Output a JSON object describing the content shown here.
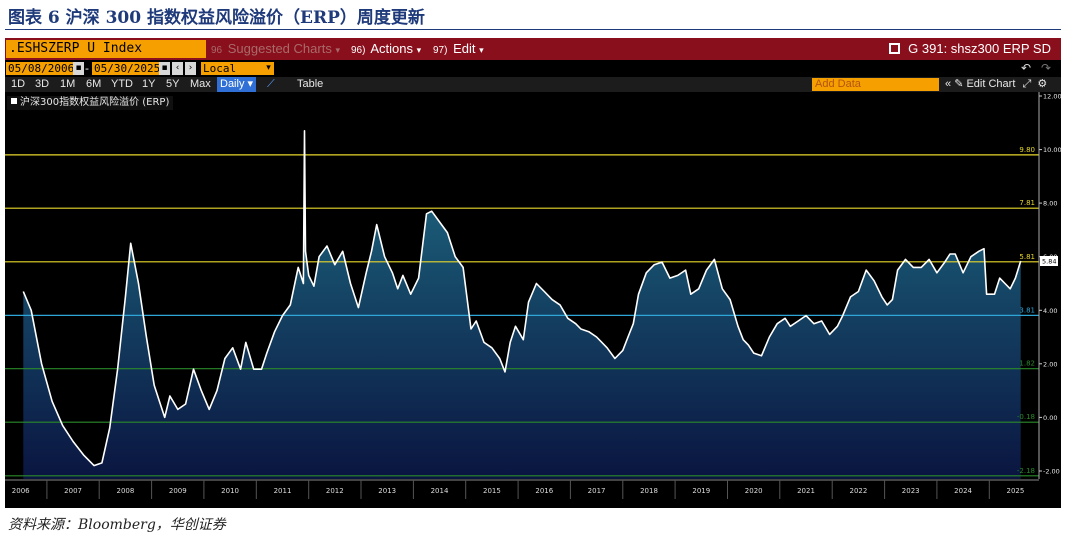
{
  "figure_title": "图表 6 沪深 300 指数权益风险溢价（ERP）周度更新",
  "source_note": "资料来源：Bloomberg，华创证券",
  "terminal": {
    "security": ".ESHSZERP U Index",
    "suggested_charts": "Suggested Charts",
    "suggested_num": "96",
    "actions_num": "96)",
    "actions_label": "Actions",
    "edit_num": "97)",
    "edit_label": "Edit",
    "chart_command": "G 391: shsz300 ERP SD",
    "start_date": "05/08/2006",
    "end_date": "05/30/2025",
    "currency": "Local CCY",
    "ranges": [
      "1D",
      "3D",
      "1M",
      "6M",
      "YTD",
      "1Y",
      "5Y",
      "Max"
    ],
    "frequency": "Daily",
    "table_label": "Table",
    "add_data_placeholder": "Add Data",
    "edit_chart_label": "Edit Chart",
    "legend_label": "沪深300指数权益风险溢价 (ERP)",
    "colors": {
      "bar_red": "#8a0f1c",
      "field_orange": "#f5a000",
      "series_line": "#ffffff",
      "area_top": "#1f6f86",
      "area_bottom": "#0a1540",
      "mean_line": "#2ea6d8",
      "sd1_line": "#e8d82a",
      "sd2_line": "#e8d82a",
      "sd3_line": "#e8d82a",
      "neg_sd_line": "#2a8a2a"
    }
  },
  "chart_data": {
    "type": "area",
    "title": "",
    "xlabel": "",
    "ylabel": "",
    "ylim": [
      -2.3,
      12.0
    ],
    "xlim": [
      2006.0,
      2025.75
    ],
    "y_ticks": [
      "12.00",
      "10.00",
      "8.00",
      "6.00",
      "4.00",
      "2.00",
      "0.00",
      "-2.00"
    ],
    "y_tick_values": [
      12,
      10,
      8,
      6,
      4,
      2,
      0,
      -2
    ],
    "x_ticks": [
      "2006",
      "2007",
      "2008",
      "2009",
      "2010",
      "2011",
      "2012",
      "2013",
      "2014",
      "2015",
      "2016",
      "2017",
      "2018",
      "2019",
      "2020",
      "2021",
      "2022",
      "2023",
      "2024",
      "2025"
    ],
    "x_tick_values": [
      2006.3,
      2007.3,
      2008.3,
      2009.3,
      2010.3,
      2011.3,
      2012.3,
      2013.3,
      2014.3,
      2015.3,
      2016.3,
      2017.3,
      2018.3,
      2019.3,
      2020.3,
      2021.3,
      2022.3,
      2023.3,
      2024.3,
      2025.3
    ],
    "reference_lines": [
      {
        "label": "9.80",
        "value": 9.8,
        "kind": "+3sd"
      },
      {
        "label": "7.81",
        "value": 7.81,
        "kind": "+2sd"
      },
      {
        "label": "5.81",
        "value": 5.81,
        "kind": "+1sd"
      },
      {
        "label": "3.81",
        "value": 3.81,
        "kind": "mean"
      },
      {
        "label": "1.82",
        "value": 1.82,
        "kind": "-1sd"
      },
      {
        "label": "-0.18",
        "value": -0.18,
        "kind": "-2sd"
      },
      {
        "label": "-2.18",
        "value": -2.18,
        "kind": "-3sd"
      }
    ],
    "last_value": "5.84",
    "last_value_num": 5.84,
    "series": [
      {
        "name": "沪深300指数权益风险溢价 (ERP)",
        "x": [
          2006.35,
          2006.5,
          2006.7,
          2006.9,
          2007.1,
          2007.3,
          2007.5,
          2007.7,
          2007.85,
          2008.0,
          2008.15,
          2008.3,
          2008.4,
          2008.55,
          2008.7,
          2008.85,
          2008.95,
          2009.05,
          2009.15,
          2009.3,
          2009.45,
          2009.6,
          2009.75,
          2009.9,
          2010.05,
          2010.2,
          2010.35,
          2010.5,
          2010.6,
          2010.75,
          2010.9,
          2011.0,
          2011.15,
          2011.3,
          2011.45,
          2011.6,
          2011.7,
          2011.72,
          2011.74,
          2011.8,
          2011.9,
          2012.0,
          2012.15,
          2012.3,
          2012.45,
          2012.6,
          2012.75,
          2012.9,
          2013.0,
          2013.1,
          2013.25,
          2013.4,
          2013.5,
          2013.6,
          2013.75,
          2013.9,
          2014.05,
          2014.15,
          2014.3,
          2014.45,
          2014.6,
          2014.75,
          2014.9,
          2015.0,
          2015.15,
          2015.3,
          2015.45,
          2015.55,
          2015.65,
          2015.75,
          2015.9,
          2016.0,
          2016.15,
          2016.3,
          2016.45,
          2016.6,
          2016.75,
          2016.9,
          2017.0,
          2017.15,
          2017.3,
          2017.5,
          2017.65,
          2017.8,
          2017.9,
          2018.0,
          2018.1,
          2018.25,
          2018.4,
          2018.55,
          2018.7,
          2018.85,
          2019.0,
          2019.1,
          2019.25,
          2019.4,
          2019.55,
          2019.7,
          2019.85,
          2020.0,
          2020.1,
          2020.2,
          2020.3,
          2020.45,
          2020.6,
          2020.75,
          2020.9,
          2021.0,
          2021.15,
          2021.3,
          2021.45,
          2021.6,
          2021.75,
          2021.9,
          2022.0,
          2022.15,
          2022.3,
          2022.45,
          2022.6,
          2022.75,
          2022.85,
          2022.95,
          2023.05,
          2023.2,
          2023.35,
          2023.5,
          2023.65,
          2023.8,
          2023.95,
          2024.05,
          2024.15,
          2024.3,
          2024.45,
          2024.6,
          2024.7,
          2024.75,
          2024.9,
          2025.0,
          2025.1,
          2025.2,
          2025.3,
          2025.4
        ],
        "values": [
          4.7,
          4.0,
          2.0,
          0.6,
          -0.3,
          -0.9,
          -1.4,
          -1.8,
          -1.7,
          -0.4,
          1.8,
          4.5,
          6.5,
          5.0,
          3.0,
          1.2,
          0.6,
          0.0,
          0.8,
          0.3,
          0.5,
          1.8,
          1.0,
          0.3,
          1.0,
          2.2,
          2.6,
          1.8,
          2.8,
          1.8,
          1.8,
          2.4,
          3.2,
          3.8,
          4.2,
          5.6,
          5.0,
          10.7,
          6.2,
          5.3,
          4.9,
          6.0,
          6.4,
          5.7,
          6.2,
          5.0,
          4.1,
          5.4,
          6.2,
          7.2,
          6.0,
          5.4,
          4.8,
          5.3,
          4.6,
          5.2,
          7.6,
          7.7,
          7.3,
          6.9,
          6.0,
          5.6,
          3.3,
          3.6,
          2.8,
          2.6,
          2.2,
          1.7,
          2.8,
          3.4,
          2.9,
          4.3,
          5.0,
          4.7,
          4.4,
          4.2,
          3.7,
          3.5,
          3.3,
          3.2,
          3.0,
          2.6,
          2.2,
          2.5,
          3.0,
          3.5,
          4.6,
          5.4,
          5.7,
          5.8,
          5.2,
          5.3,
          5.5,
          4.6,
          4.8,
          5.5,
          5.9,
          4.8,
          4.4,
          3.4,
          2.9,
          2.7,
          2.4,
          2.3,
          3.0,
          3.5,
          3.7,
          3.4,
          3.6,
          3.8,
          3.5,
          3.6,
          3.1,
          3.4,
          3.8,
          4.5,
          4.7,
          5.5,
          5.1,
          4.5,
          4.2,
          4.4,
          5.5,
          5.9,
          5.6,
          5.6,
          5.9,
          5.4,
          5.8,
          6.1,
          6.1,
          5.4,
          6.0,
          6.2,
          6.3,
          4.6,
          4.6,
          5.2,
          5.0,
          4.8,
          5.2,
          5.84
        ]
      }
    ]
  }
}
